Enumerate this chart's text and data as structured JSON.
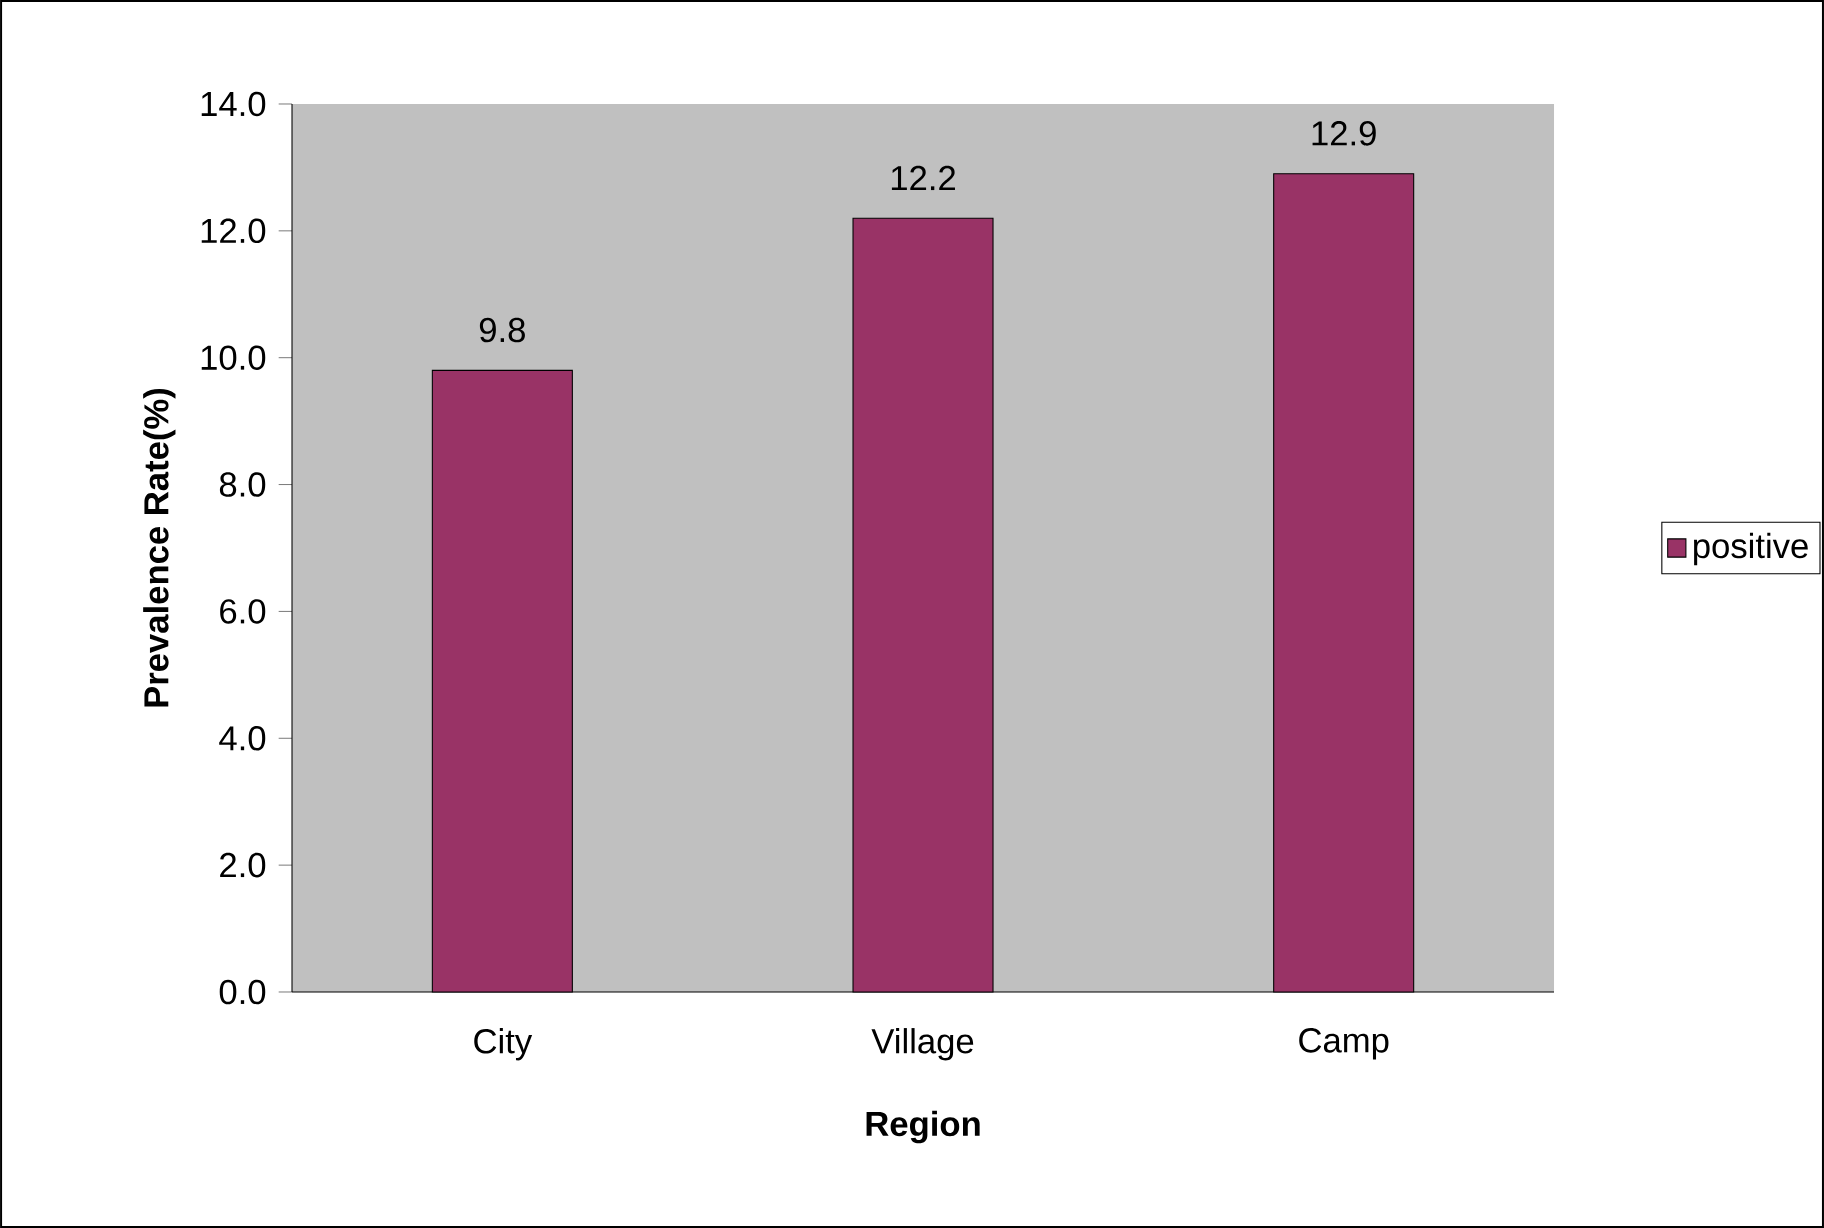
{
  "chart_data": {
    "type": "bar",
    "xlabel": "Region",
    "ylabel": "Prevalence Rate(%)",
    "categories": [
      "City",
      "Village",
      "Camp"
    ],
    "series": [
      {
        "name": "positive",
        "color": "#993366",
        "values": [
          9.8,
          12.2,
          12.9
        ]
      }
    ],
    "ylim": [
      0,
      14
    ],
    "yticks": [
      {
        "value": 0,
        "label": "0.0"
      },
      {
        "value": 2,
        "label": "2.0"
      },
      {
        "value": 4,
        "label": "4.0"
      },
      {
        "value": 6,
        "label": "6.0"
      },
      {
        "value": 8,
        "label": "8.0"
      },
      {
        "value": 10,
        "label": "10.0"
      },
      {
        "value": 12,
        "label": "12.0"
      },
      {
        "value": 14,
        "label": "14.0"
      }
    ],
    "data_labels": true,
    "legend": "right",
    "grid": false
  }
}
